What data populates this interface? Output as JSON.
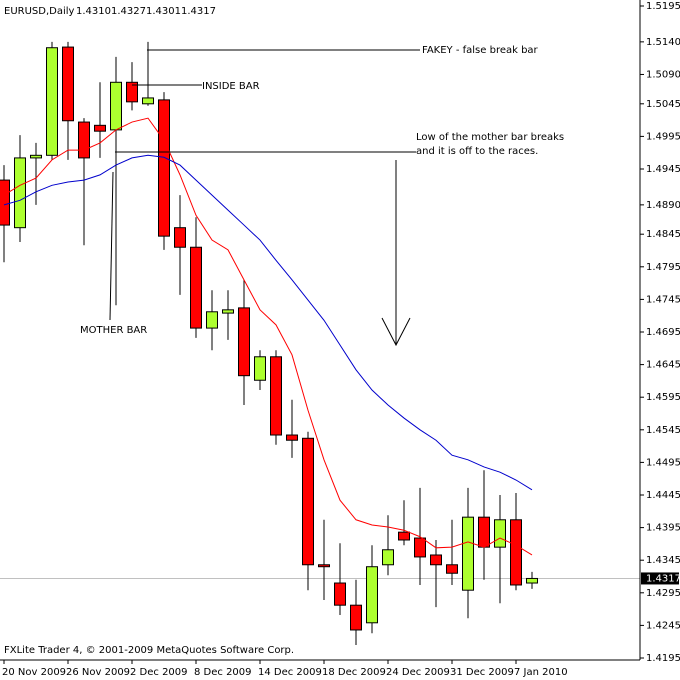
{
  "chart_data": {
    "type": "candlestick",
    "title": "EURUSD,Daily",
    "header_prices": [
      "1.4310",
      "1.4327",
      "1.4301",
      "1.4317"
    ],
    "footer": "FXLite Trader 4, © 2001-2009 MetaQuotes Software Corp.",
    "categories": [
      "20 Nov 2009",
      null,
      null,
      null,
      "26 Nov 2009",
      null,
      null,
      null,
      "2 Dec 2009",
      null,
      null,
      null,
      "8 Dec 2009",
      null,
      null,
      null,
      "14 Dec 2009",
      null,
      null,
      null,
      "18 Dec 2009",
      null,
      null,
      null,
      "24 Dec 2009",
      null,
      null,
      null,
      "31 Dec 2009",
      null,
      null,
      null,
      "7 Jan 2010",
      null
    ],
    "open": [
      1.4928,
      1.4855,
      1.4962,
      1.4966,
      1.5132,
      1.5017,
      1.5012,
      1.5005,
      1.5078,
      1.5045,
      1.5051,
      1.4855,
      1.4825,
      1.4701,
      1.4724,
      1.4732,
      1.4621,
      1.4657,
      1.4537,
      1.4532,
      1.4338,
      1.431,
      1.4276,
      1.4249,
      1.4338,
      1.4388,
      1.4379,
      1.4353,
      1.4338,
      1.4299,
      1.4411,
      1.4365,
      1.4407,
      1.431
    ],
    "high": [
      1.4951,
      1.4997,
      1.4985,
      1.514,
      1.514,
      1.5023,
      1.5078,
      1.5117,
      1.5109,
      1.514,
      1.5063,
      1.4905,
      1.4871,
      1.4759,
      1.4759,
      1.4775,
      1.4667,
      1.4667,
      1.4591,
      1.4542,
      1.4407,
      1.4371,
      1.4315,
      1.4368,
      1.4414,
      1.4437,
      1.4456,
      1.4376,
      1.4407,
      1.4456,
      1.4483,
      1.4445,
      1.4448,
      1.4327
    ],
    "low": [
      1.4802,
      1.4833,
      1.489,
      1.4959,
      1.4959,
      1.4828,
      1.4962,
      1.4736,
      1.5035,
      1.5042,
      1.4821,
      1.4752,
      1.4686,
      1.4667,
      1.4683,
      1.4583,
      1.4606,
      1.4522,
      1.4502,
      1.4299,
      1.4284,
      1.4261,
      1.4215,
      1.4233,
      1.4322,
      1.4368,
      1.4307,
      1.4273,
      1.4307,
      1.4256,
      1.4315,
      1.4279,
      1.4299,
      1.4301
    ],
    "close": [
      1.4859,
      1.4962,
      1.4966,
      1.5131,
      1.5019,
      1.4962,
      1.5003,
      1.5078,
      1.5048,
      1.5054,
      1.4842,
      1.4825,
      1.4701,
      1.4726,
      1.4729,
      1.4628,
      1.4657,
      1.4537,
      1.4529,
      1.4338,
      1.4335,
      1.4276,
      1.4238,
      1.4335,
      1.4361,
      1.4376,
      1.435,
      1.4338,
      1.4325,
      1.4411,
      1.4365,
      1.4407,
      1.4307,
      1.4317
    ],
    "up_color": "#adff2f",
    "down_color": "#ff0000",
    "series": [
      {
        "color": "#ff0000",
        "values": [
          1.4905,
          1.492,
          1.4931,
          1.4959,
          1.4974,
          1.4974,
          1.4985,
          1.5005,
          1.5017,
          1.5023,
          1.4989,
          1.4936,
          1.4874,
          1.4836,
          1.4821,
          1.4775,
          1.4729,
          1.4706,
          1.466,
          1.4575,
          1.4499,
          1.4437,
          1.4407,
          1.4399,
          1.4396,
          1.4391,
          1.4381,
          1.4364,
          1.4365,
          1.4373,
          1.4365,
          1.4379,
          1.4368,
          1.4353
        ]
      },
      {
        "color": "#0000cc",
        "values": [
          1.489,
          1.4897,
          1.491,
          1.492,
          1.4925,
          1.4928,
          1.4936,
          1.4951,
          1.4962,
          1.4966,
          1.4963,
          1.4951,
          1.4928,
          1.4905,
          1.4882,
          1.4859,
          1.4836,
          1.4805,
          1.4775,
          1.4744,
          1.4713,
          1.4675,
          1.4637,
          1.4606,
          1.4583,
          1.4563,
          1.4545,
          1.4529,
          1.4506,
          1.4499,
          1.4488,
          1.448,
          1.4468,
          1.4453
        ]
      }
    ],
    "ylim": [
      1.4195,
      1.5195
    ],
    "yticks": [
      1.5195,
      {
        "value": 1.514,
        "label": "1.5140"
      },
      {
        "value": 1.509,
        "label": "1.5090"
      },
      1.5045,
      1.4995,
      1.4945,
      {
        "value": 1.489,
        "label": "1.4890"
      },
      1.4845,
      1.4795,
      1.4745,
      1.4695,
      1.4645,
      1.4595,
      1.4545,
      1.4495,
      1.4445,
      1.4395,
      1.4345,
      1.4295,
      1.4245,
      1.4195
    ],
    "last_price": 1.4317,
    "annotations": [
      "FAKEY - false break bar",
      "INSIDE BAR",
      "Low of the mother bar breaks",
      "and it is off to the races.",
      "MOTHER BAR"
    ]
  }
}
